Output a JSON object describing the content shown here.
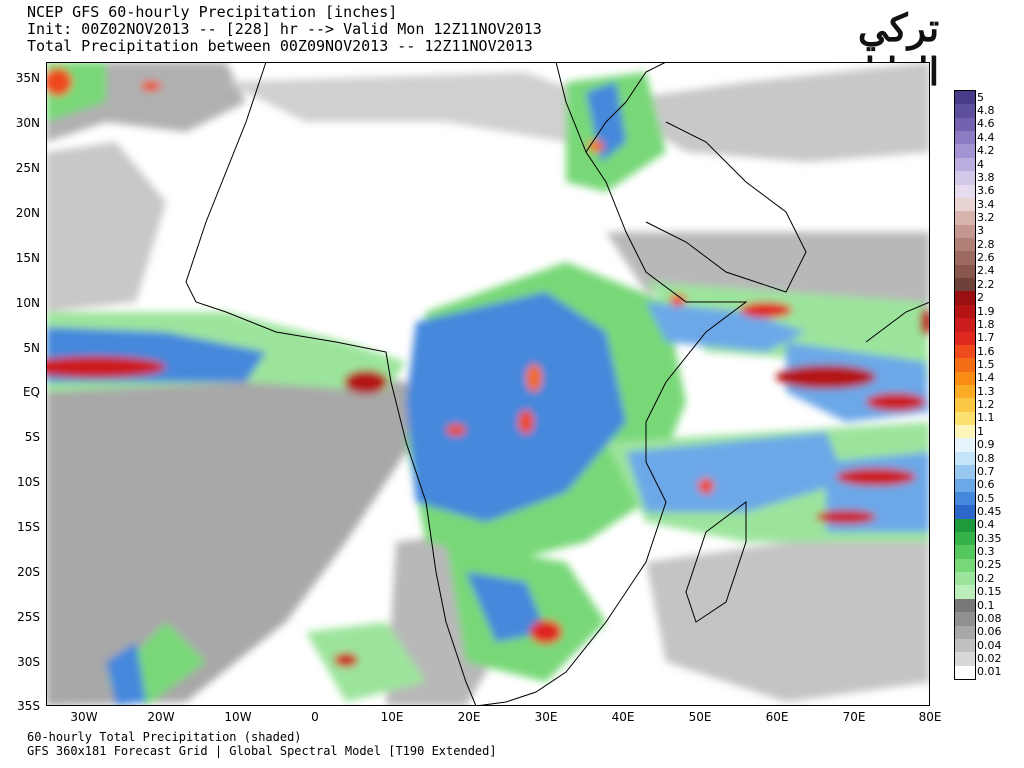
{
  "header": {
    "line1": "NCEP GFS 60-hourly Precipitation [inches]",
    "line2": "Init: 00Z02NOV2013 -- [228] hr --> Valid Mon 12Z11NOV2013",
    "line3": "Total Precipitation between 00Z09NOV2013 -- 12Z11NOV2013"
  },
  "footer": {
    "line1": "60-hourly Total Precipitation (shaded)",
    "line2": "GFS 360x181 Forecast Grid | Global Spectral Model [T190 Extended]"
  },
  "watermark": {
    "line1": "تركي",
    "line2": "الوايلي"
  },
  "map": {
    "lat_labels": [
      "35N",
      "30N",
      "25N",
      "20N",
      "15N",
      "10N",
      "5N",
      "EQ",
      "5S",
      "10S",
      "15S",
      "20S",
      "25S",
      "30S",
      "35S"
    ],
    "lon_labels": [
      "30W",
      "20W",
      "10W",
      "0",
      "10E",
      "20E",
      "30E",
      "40E",
      "50E",
      "60E",
      "70E",
      "80E"
    ],
    "lat_range": [
      -35,
      35
    ],
    "lon_range": [
      -35,
      80
    ]
  },
  "colorbar": {
    "levels": [
      "5",
      "4.8",
      "4.6",
      "4.4",
      "4.2",
      "4",
      "3.8",
      "3.6",
      "3.4",
      "3.2",
      "3",
      "2.8",
      "2.6",
      "2.4",
      "2.2",
      "2",
      "1.9",
      "1.8",
      "1.7",
      "1.6",
      "1.5",
      "1.4",
      "1.3",
      "1.2",
      "1.1",
      "1",
      "0.9",
      "0.8",
      "0.7",
      "0.6",
      "0.5",
      "0.45",
      "0.4",
      "0.35",
      "0.3",
      "0.25",
      "0.2",
      "0.15",
      "0.1",
      "0.08",
      "0.06",
      "0.04",
      "0.02",
      "0.01"
    ],
    "colors": [
      "#4a3a8a",
      "#5e4e9e",
      "#7462b0",
      "#8c7ac2",
      "#a393d2",
      "#bbaede",
      "#d2c8e8",
      "#e6dcee",
      "#e8d4d0",
      "#d8b4ae",
      "#c49890",
      "#b08076",
      "#9c6a60",
      "#88564c",
      "#6e4238",
      "#9a1010",
      "#b41414",
      "#cc1c1c",
      "#e02820",
      "#ee4a1c",
      "#f46c14",
      "#f88c14",
      "#fcac24",
      "#fcc844",
      "#fce070",
      "#fcf4b8",
      "#e8f4fc",
      "#c4e4f8",
      "#98c8f0",
      "#6ca8e8",
      "#4488dc",
      "#2c66c8",
      "#1c9a3c",
      "#34b448",
      "#54c85c",
      "#78d878",
      "#9ce49c",
      "#bceebc",
      "#787878",
      "#909090",
      "#a8a8a8",
      "#c0c0c0",
      "#d8d8d8",
      "#ffffff"
    ]
  }
}
